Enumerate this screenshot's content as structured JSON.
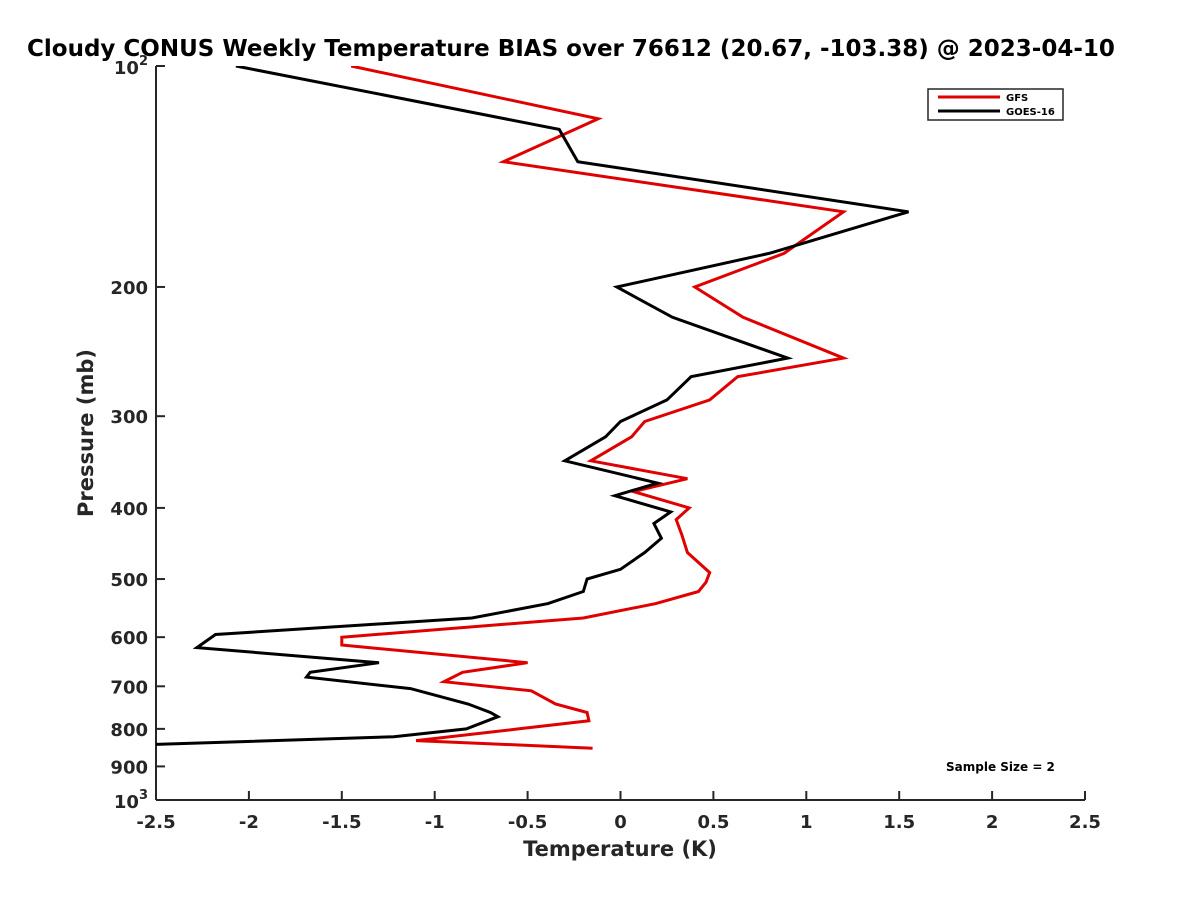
{
  "chart_data": {
    "type": "line",
    "title": "Cloudy CONUS Weekly Temperature BIAS over 76612 (20.67, -103.38) @ 2023-04-10",
    "xlabel": "Temperature (K)",
    "ylabel": "Pressure (mb)",
    "xlim": [
      -2.5,
      2.5
    ],
    "ylim": [
      100,
      1000
    ],
    "y_scale": "log",
    "y_reversed": true,
    "grid": false,
    "legend_position": "top-right",
    "x_ticks": [
      -2.5,
      -2,
      -1.5,
      -1,
      -0.5,
      0,
      0.5,
      1,
      1.5,
      2,
      2.5
    ],
    "x_tick_labels": [
      "-2.5",
      "-2",
      "-1.5",
      "-1",
      "-0.5",
      "0",
      "0.5",
      "1",
      "1.5",
      "2",
      "2.5"
    ],
    "y_ticks": [
      200,
      300,
      400,
      500,
      600,
      700,
      800,
      900
    ],
    "y_tick_labels": [
      "200",
      "300",
      "400",
      "500",
      "600",
      "700",
      "800",
      "900"
    ],
    "y_end_ticks": [
      {
        "value": 100,
        "base": "10",
        "exp": "2"
      },
      {
        "value": 1000,
        "base": "10",
        "exp": "3"
      }
    ],
    "annotation": "Sample Size = 2",
    "series": [
      {
        "name": "GFS",
        "color": "#e00000",
        "x": [
          -1.45,
          -0.12,
          -0.63,
          1.2,
          0.88,
          0.4,
          0.66,
          1.2,
          0.63,
          0.48,
          0.13,
          0.06,
          -0.16,
          0.36,
          0.07,
          0.37,
          0.3,
          0.33,
          0.36,
          0.48,
          0.46,
          0.42,
          0.19,
          -0.2,
          -1.5,
          -1.5,
          -0.5,
          -0.85,
          -0.95,
          -0.48,
          -0.35,
          -0.18,
          -0.17,
          -0.55,
          -1.1,
          -0.15
        ],
        "y": [
          100,
          118,
          135,
          158,
          180,
          200,
          220,
          250,
          265,
          285,
          305,
          320,
          345,
          365,
          380,
          400,
          415,
          435,
          460,
          490,
          505,
          520,
          540,
          565,
          600,
          615,
          650,
          670,
          690,
          710,
          740,
          760,
          780,
          800,
          830,
          850
        ]
      },
      {
        "name": "GOES-16",
        "color": "#000000",
        "x": [
          -2.07,
          -0.33,
          -0.23,
          1.55,
          0.8,
          -0.02,
          0.28,
          0.9,
          0.38,
          0.25,
          0.0,
          -0.08,
          -0.3,
          0.2,
          -0.03,
          0.27,
          0.18,
          0.22,
          0.13,
          0.0,
          -0.18,
          -0.2,
          -0.39,
          -0.8,
          -2.18,
          -2.28,
          -1.3,
          -1.67,
          -1.69,
          -1.13,
          -0.82,
          -0.7,
          -0.66,
          -0.83,
          -1.22,
          -2.5
        ],
        "y": [
          100,
          122,
          135,
          158,
          180,
          200,
          220,
          250,
          265,
          285,
          305,
          320,
          345,
          370,
          385,
          405,
          420,
          440,
          460,
          485,
          500,
          520,
          540,
          565,
          595,
          620,
          650,
          670,
          680,
          705,
          740,
          760,
          770,
          800,
          820,
          840
        ]
      }
    ]
  }
}
